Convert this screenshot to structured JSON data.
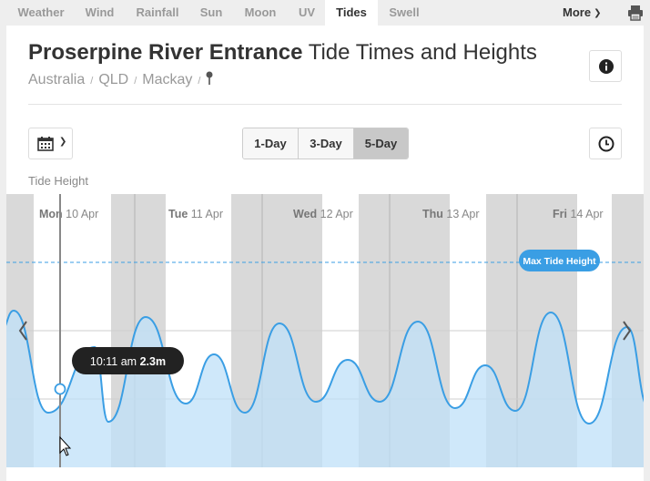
{
  "nav": {
    "tabs": [
      {
        "label": "Weather",
        "active": false
      },
      {
        "label": "Wind",
        "active": false
      },
      {
        "label": "Rainfall",
        "active": false
      },
      {
        "label": "Sun",
        "active": false
      },
      {
        "label": "Moon",
        "active": false
      },
      {
        "label": "UV",
        "active": false
      },
      {
        "label": "Tides",
        "active": true
      },
      {
        "label": "Swell",
        "active": false
      }
    ],
    "more_label": "More",
    "printer_icon": "printer-icon"
  },
  "header": {
    "title_bold": "Proserpine River Entrance",
    "title_rest": " Tide Times and Heights",
    "breadcrumb": [
      "Australia",
      "QLD",
      "Mackay"
    ],
    "pin_icon": "map-pin-icon",
    "info_icon": "info-icon"
  },
  "controls": {
    "calendar_icon": "calendar-icon",
    "range_options": [
      {
        "label": "1-Day",
        "selected": false
      },
      {
        "label": "3-Day",
        "selected": false
      },
      {
        "label": "5-Day",
        "selected": true
      }
    ],
    "clock_icon": "clock-icon"
  },
  "chart_data": {
    "type": "area",
    "title": "",
    "ylabel": "Tide Height",
    "days": [
      {
        "day": "Mon",
        "date": "10 Apr"
      },
      {
        "day": "Tue",
        "date": "11 Apr"
      },
      {
        "day": "Wed",
        "date": "12 Apr"
      },
      {
        "day": "Thu",
        "date": "13 Apr"
      },
      {
        "day": "Fri",
        "date": "14 Apr"
      }
    ],
    "max_tide_label": "Max Tide Height",
    "tooltip": {
      "time": "10:11 am",
      "height": "2.3m"
    },
    "series_color": "#3a9ee4",
    "fill_color": "#bfe0f8",
    "night_color": "#d9d9d9"
  }
}
